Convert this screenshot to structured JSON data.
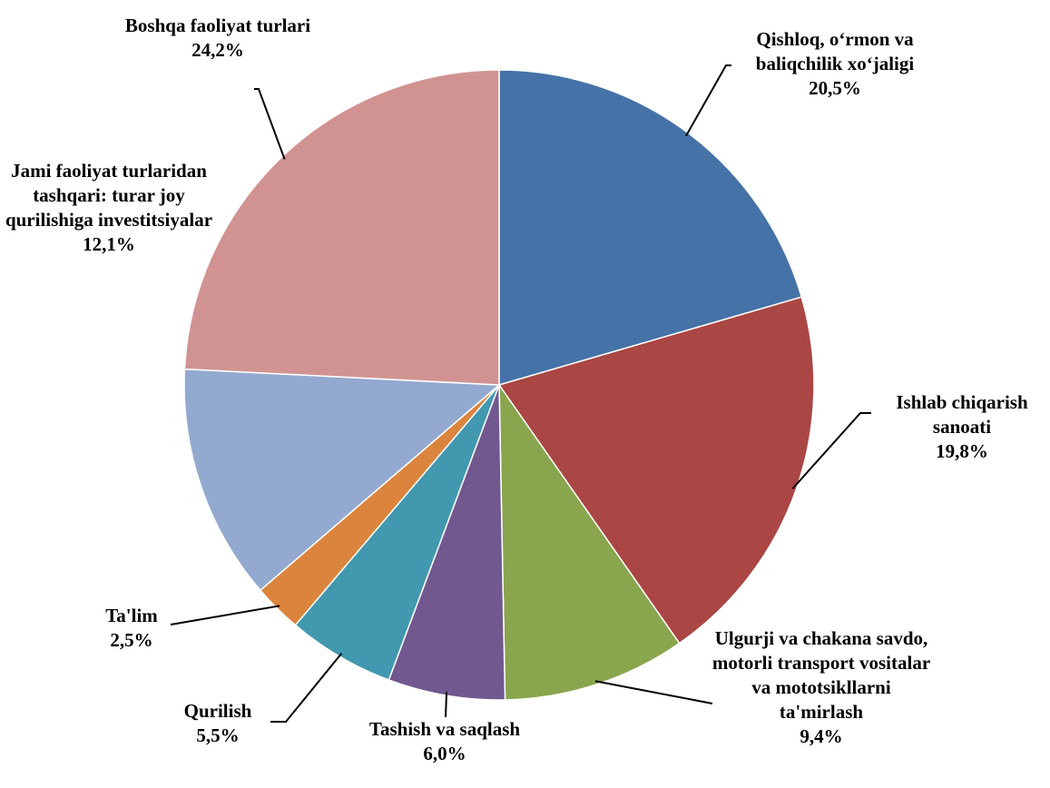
{
  "chart_data": {
    "type": "pie",
    "categories": [
      "Qishloq, o‘rmon va baliqchilik xo‘jaligi",
      "Ishlab chiqarish sanoati",
      "Ulgurji va chakana savdo, motorli transport vositalar va mototsikllarni ta'mirlash",
      "Tashish va saqlash",
      "Qurilish",
      "Ta'lim",
      "Jami faoliyat turlaridan tashqari: turar joy qurilishiga investitsiyalar",
      "Boshqa faoliyat turlari"
    ],
    "values": [
      20.5,
      19.8,
      9.4,
      6.0,
      5.5,
      2.5,
      12.1,
      24.2
    ],
    "value_labels": [
      "20,5%",
      "19,8%",
      "9,4%",
      "6,0%",
      "5,5%",
      "2,5%",
      "12,1%",
      "24,2%"
    ],
    "colors": [
      "#4572a7",
      "#aa4643",
      "#89a54e",
      "#71588f",
      "#4198af",
      "#db843d",
      "#93a9cf",
      "#d19392"
    ]
  }
}
